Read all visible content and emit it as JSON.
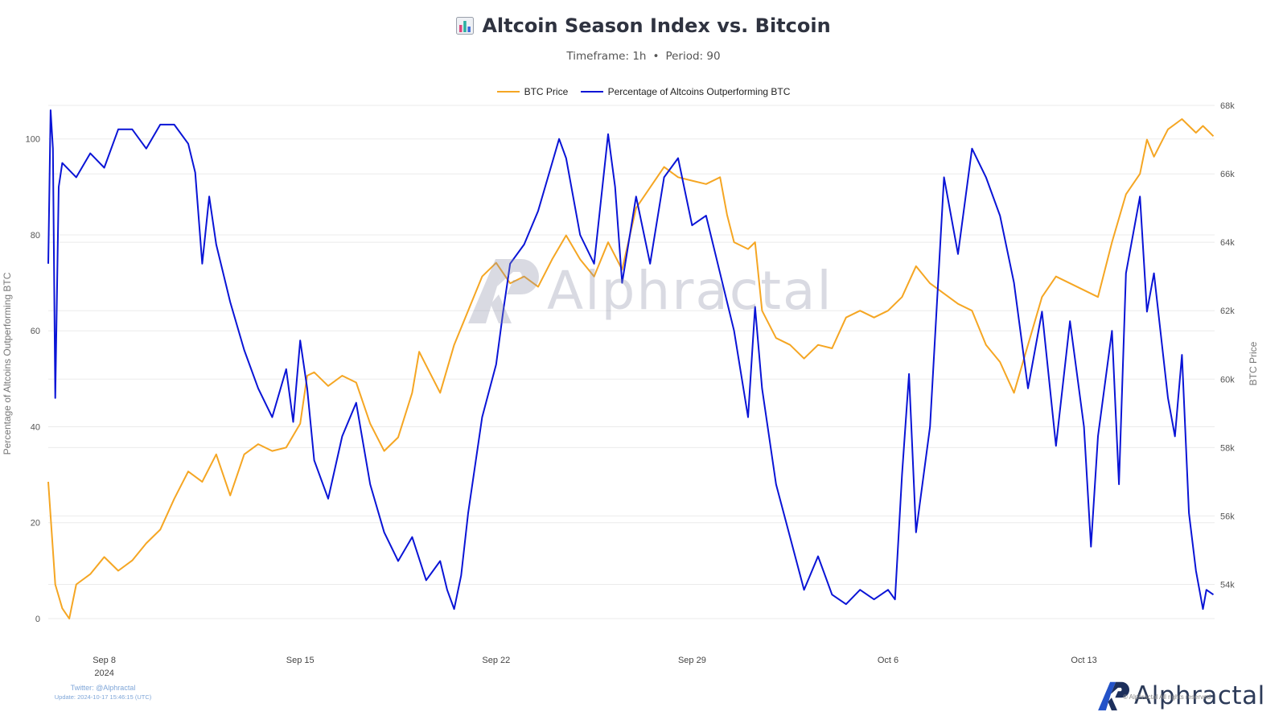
{
  "header": {
    "title": "Altcoin Season Index vs. Bitcoin",
    "timeframe": "Timeframe: 1h",
    "period": "Period: 90",
    "subtitle_separator": "•"
  },
  "legend": [
    {
      "label": "BTC Price",
      "color": "#f5a623"
    },
    {
      "label": "Percentage of Altcoins Outperforming BTC",
      "color": "#0a14d6"
    }
  ],
  "footer": {
    "twitter": "Twitter: @Alphractal",
    "update": "Update: 2024-10-17 15:46:15 (UTC)",
    "brand": "Alphractal",
    "rights": "© Alphractal All rights reserved"
  },
  "watermark": "Alphractal",
  "chart_data": {
    "type": "line",
    "x_axis": {
      "type": "date",
      "range": [
        "2024-09-06",
        "2024-10-17"
      ],
      "ticks": [
        {
          "date": "2024-09-08",
          "label": "Sep 8",
          "sublabel": "2024"
        },
        {
          "date": "2024-09-15",
          "label": "Sep 15"
        },
        {
          "date": "2024-09-22",
          "label": "Sep 22"
        },
        {
          "date": "2024-09-29",
          "label": "Sep 29"
        },
        {
          "date": "2024-10-06",
          "label": "Oct 6"
        },
        {
          "date": "2024-10-13",
          "label": "Oct 13"
        }
      ]
    },
    "y_left": {
      "label": "Percentage of Altcoins Outperforming BTC",
      "range": [
        0,
        107
      ],
      "ticks": [
        0,
        20,
        40,
        60,
        80,
        100
      ]
    },
    "y_right": {
      "label": "BTC Price",
      "range": [
        53000,
        68000
      ],
      "ticks": [
        54000,
        56000,
        58000,
        60000,
        62000,
        64000,
        66000,
        68000
      ],
      "tick_labels": [
        "54k",
        "56k",
        "58k",
        "60k",
        "62k",
        "64k",
        "66k",
        "68k"
      ]
    },
    "grid": true,
    "legend_position": "top-center",
    "series": [
      {
        "name": "BTC Price",
        "axis": "right",
        "color": "#f5a623",
        "points": [
          [
            "2024-09-06 00:00",
            57000
          ],
          [
            "2024-09-06 06:00",
            54000
          ],
          [
            "2024-09-06 12:00",
            53300
          ],
          [
            "2024-09-06 18:00",
            53000
          ],
          [
            "2024-09-07 00:00",
            54000
          ],
          [
            "2024-09-07 12:00",
            54300
          ],
          [
            "2024-09-08 00:00",
            54800
          ],
          [
            "2024-09-08 12:00",
            54400
          ],
          [
            "2024-09-09 00:00",
            54700
          ],
          [
            "2024-09-09 12:00",
            55200
          ],
          [
            "2024-09-10 00:00",
            55600
          ],
          [
            "2024-09-10 12:00",
            56500
          ],
          [
            "2024-09-11 00:00",
            57300
          ],
          [
            "2024-09-11 12:00",
            57000
          ],
          [
            "2024-09-12 00:00",
            57800
          ],
          [
            "2024-09-12 12:00",
            56600
          ],
          [
            "2024-09-13 00:00",
            57800
          ],
          [
            "2024-09-13 12:00",
            58100
          ],
          [
            "2024-09-14 00:00",
            57900
          ],
          [
            "2024-09-14 12:00",
            58000
          ],
          [
            "2024-09-15 00:00",
            58700
          ],
          [
            "2024-09-15 06:00",
            60100
          ],
          [
            "2024-09-15 12:00",
            60200
          ],
          [
            "2024-09-16 00:00",
            59800
          ],
          [
            "2024-09-16 12:00",
            60100
          ],
          [
            "2024-09-17 00:00",
            59900
          ],
          [
            "2024-09-17 12:00",
            58700
          ],
          [
            "2024-09-18 00:00",
            57900
          ],
          [
            "2024-09-18 12:00",
            58300
          ],
          [
            "2024-09-19 00:00",
            59600
          ],
          [
            "2024-09-19 06:00",
            60800
          ],
          [
            "2024-09-19 12:00",
            60400
          ],
          [
            "2024-09-20 00:00",
            59600
          ],
          [
            "2024-09-20 12:00",
            61000
          ],
          [
            "2024-09-21 00:00",
            62000
          ],
          [
            "2024-09-21 12:00",
            63000
          ],
          [
            "2024-09-22 00:00",
            63400
          ],
          [
            "2024-09-22 12:00",
            62800
          ],
          [
            "2024-09-23 00:00",
            63000
          ],
          [
            "2024-09-23 12:00",
            62700
          ],
          [
            "2024-09-24 00:00",
            63500
          ],
          [
            "2024-09-24 12:00",
            64200
          ],
          [
            "2024-09-25 00:00",
            63500
          ],
          [
            "2024-09-25 12:00",
            63000
          ],
          [
            "2024-09-26 00:00",
            64000
          ],
          [
            "2024-09-26 12:00",
            63200
          ],
          [
            "2024-09-27 00:00",
            65000
          ],
          [
            "2024-09-27 12:00",
            65600
          ],
          [
            "2024-09-28 00:00",
            66200
          ],
          [
            "2024-09-28 12:00",
            65900
          ],
          [
            "2024-09-29 00:00",
            65800
          ],
          [
            "2024-09-29 12:00",
            65700
          ],
          [
            "2024-09-30 00:00",
            65900
          ],
          [
            "2024-09-30 06:00",
            64800
          ],
          [
            "2024-09-30 12:00",
            64000
          ],
          [
            "2024-10-01 00:00",
            63800
          ],
          [
            "2024-10-01 06:00",
            64000
          ],
          [
            "2024-10-01 12:00",
            62000
          ],
          [
            "2024-10-02 00:00",
            61200
          ],
          [
            "2024-10-02 12:00",
            61000
          ],
          [
            "2024-10-03 00:00",
            60600
          ],
          [
            "2024-10-03 12:00",
            61000
          ],
          [
            "2024-10-04 00:00",
            60900
          ],
          [
            "2024-10-04 12:00",
            61800
          ],
          [
            "2024-10-05 00:00",
            62000
          ],
          [
            "2024-10-05 12:00",
            61800
          ],
          [
            "2024-10-06 00:00",
            62000
          ],
          [
            "2024-10-06 12:00",
            62400
          ],
          [
            "2024-10-07 00:00",
            63300
          ],
          [
            "2024-10-07 12:00",
            62800
          ],
          [
            "2024-10-08 00:00",
            62500
          ],
          [
            "2024-10-08 12:00",
            62200
          ],
          [
            "2024-10-09 00:00",
            62000
          ],
          [
            "2024-10-09 12:00",
            61000
          ],
          [
            "2024-10-10 00:00",
            60500
          ],
          [
            "2024-10-10 12:00",
            59600
          ],
          [
            "2024-10-11 00:00",
            61000
          ],
          [
            "2024-10-11 12:00",
            62400
          ],
          [
            "2024-10-12 00:00",
            63000
          ],
          [
            "2024-10-12 12:00",
            62800
          ],
          [
            "2024-10-13 00:00",
            62600
          ],
          [
            "2024-10-13 12:00",
            62400
          ],
          [
            "2024-10-14 00:00",
            64000
          ],
          [
            "2024-10-14 12:00",
            65400
          ],
          [
            "2024-10-15 00:00",
            66000
          ],
          [
            "2024-10-15 06:00",
            67000
          ],
          [
            "2024-10-15 12:00",
            66500
          ],
          [
            "2024-10-16 00:00",
            67300
          ],
          [
            "2024-10-16 12:00",
            67600
          ],
          [
            "2024-10-17 00:00",
            67200
          ],
          [
            "2024-10-17 06:00",
            67400
          ],
          [
            "2024-10-17 15:00",
            67100
          ]
        ]
      },
      {
        "name": "Percentage of Altcoins Outperforming BTC",
        "axis": "left",
        "color": "#0a14d6",
        "points": [
          [
            "2024-09-06 00:00",
            74
          ],
          [
            "2024-09-06 02:00",
            106
          ],
          [
            "2024-09-06 04:00",
            98
          ],
          [
            "2024-09-06 06:00",
            46
          ],
          [
            "2024-09-06 09:00",
            90
          ],
          [
            "2024-09-06 12:00",
            95
          ],
          [
            "2024-09-07 00:00",
            92
          ],
          [
            "2024-09-07 12:00",
            97
          ],
          [
            "2024-09-08 00:00",
            94
          ],
          [
            "2024-09-08 12:00",
            102
          ],
          [
            "2024-09-09 00:00",
            102
          ],
          [
            "2024-09-09 12:00",
            98
          ],
          [
            "2024-09-10 00:00",
            103
          ],
          [
            "2024-09-10 12:00",
            103
          ],
          [
            "2024-09-11 00:00",
            99
          ],
          [
            "2024-09-11 06:00",
            93
          ],
          [
            "2024-09-11 12:00",
            74
          ],
          [
            "2024-09-11 18:00",
            88
          ],
          [
            "2024-09-12 00:00",
            78
          ],
          [
            "2024-09-12 12:00",
            66
          ],
          [
            "2024-09-13 00:00",
            56
          ],
          [
            "2024-09-13 12:00",
            48
          ],
          [
            "2024-09-14 00:00",
            42
          ],
          [
            "2024-09-14 12:00",
            52
          ],
          [
            "2024-09-14 18:00",
            41
          ],
          [
            "2024-09-15 00:00",
            58
          ],
          [
            "2024-09-15 06:00",
            48
          ],
          [
            "2024-09-15 12:00",
            33
          ],
          [
            "2024-09-16 00:00",
            25
          ],
          [
            "2024-09-16 12:00",
            38
          ],
          [
            "2024-09-17 00:00",
            45
          ],
          [
            "2024-09-17 12:00",
            28
          ],
          [
            "2024-09-18 00:00",
            18
          ],
          [
            "2024-09-18 12:00",
            12
          ],
          [
            "2024-09-19 00:00",
            17
          ],
          [
            "2024-09-19 12:00",
            8
          ],
          [
            "2024-09-20 00:00",
            12
          ],
          [
            "2024-09-20 06:00",
            6
          ],
          [
            "2024-09-20 12:00",
            2
          ],
          [
            "2024-09-20 18:00",
            9
          ],
          [
            "2024-09-21 00:00",
            22
          ],
          [
            "2024-09-21 12:00",
            42
          ],
          [
            "2024-09-22 00:00",
            53
          ],
          [
            "2024-09-22 06:00",
            64
          ],
          [
            "2024-09-22 12:00",
            74
          ],
          [
            "2024-09-23 00:00",
            78
          ],
          [
            "2024-09-23 12:00",
            85
          ],
          [
            "2024-09-24 00:00",
            95
          ],
          [
            "2024-09-24 06:00",
            100
          ],
          [
            "2024-09-24 12:00",
            96
          ],
          [
            "2024-09-25 00:00",
            80
          ],
          [
            "2024-09-25 12:00",
            74
          ],
          [
            "2024-09-26 00:00",
            101
          ],
          [
            "2024-09-26 06:00",
            90
          ],
          [
            "2024-09-26 12:00",
            70
          ],
          [
            "2024-09-27 00:00",
            88
          ],
          [
            "2024-09-27 12:00",
            74
          ],
          [
            "2024-09-28 00:00",
            92
          ],
          [
            "2024-09-28 12:00",
            96
          ],
          [
            "2024-09-29 00:00",
            82
          ],
          [
            "2024-09-29 12:00",
            84
          ],
          [
            "2024-09-30 00:00",
            72
          ],
          [
            "2024-09-30 12:00",
            60
          ],
          [
            "2024-10-01 00:00",
            42
          ],
          [
            "2024-10-01 06:00",
            65
          ],
          [
            "2024-10-01 12:00",
            48
          ],
          [
            "2024-10-02 00:00",
            28
          ],
          [
            "2024-10-02 12:00",
            17
          ],
          [
            "2024-10-03 00:00",
            6
          ],
          [
            "2024-10-03 12:00",
            13
          ],
          [
            "2024-10-04 00:00",
            5
          ],
          [
            "2024-10-04 12:00",
            3
          ],
          [
            "2024-10-05 00:00",
            6
          ],
          [
            "2024-10-05 12:00",
            4
          ],
          [
            "2024-10-06 00:00",
            6
          ],
          [
            "2024-10-06 06:00",
            4
          ],
          [
            "2024-10-06 12:00",
            30
          ],
          [
            "2024-10-06 18:00",
            51
          ],
          [
            "2024-10-07 00:00",
            18
          ],
          [
            "2024-10-07 12:00",
            40
          ],
          [
            "2024-10-08 00:00",
            92
          ],
          [
            "2024-10-08 12:00",
            76
          ],
          [
            "2024-10-09 00:00",
            98
          ],
          [
            "2024-10-09 12:00",
            92
          ],
          [
            "2024-10-10 00:00",
            84
          ],
          [
            "2024-10-10 12:00",
            70
          ],
          [
            "2024-10-11 00:00",
            48
          ],
          [
            "2024-10-11 12:00",
            64
          ],
          [
            "2024-10-12 00:00",
            36
          ],
          [
            "2024-10-12 12:00",
            62
          ],
          [
            "2024-10-13 00:00",
            40
          ],
          [
            "2024-10-13 06:00",
            15
          ],
          [
            "2024-10-13 12:00",
            38
          ],
          [
            "2024-10-14 00:00",
            60
          ],
          [
            "2024-10-14 06:00",
            28
          ],
          [
            "2024-10-14 12:00",
            72
          ],
          [
            "2024-10-15 00:00",
            88
          ],
          [
            "2024-10-15 06:00",
            64
          ],
          [
            "2024-10-15 12:00",
            72
          ],
          [
            "2024-10-16 00:00",
            46
          ],
          [
            "2024-10-16 06:00",
            38
          ],
          [
            "2024-10-16 12:00",
            55
          ],
          [
            "2024-10-16 18:00",
            22
          ],
          [
            "2024-10-17 00:00",
            10
          ],
          [
            "2024-10-17 06:00",
            2
          ],
          [
            "2024-10-17 09:00",
            6
          ],
          [
            "2024-10-17 15:00",
            5
          ]
        ]
      }
    ]
  }
}
